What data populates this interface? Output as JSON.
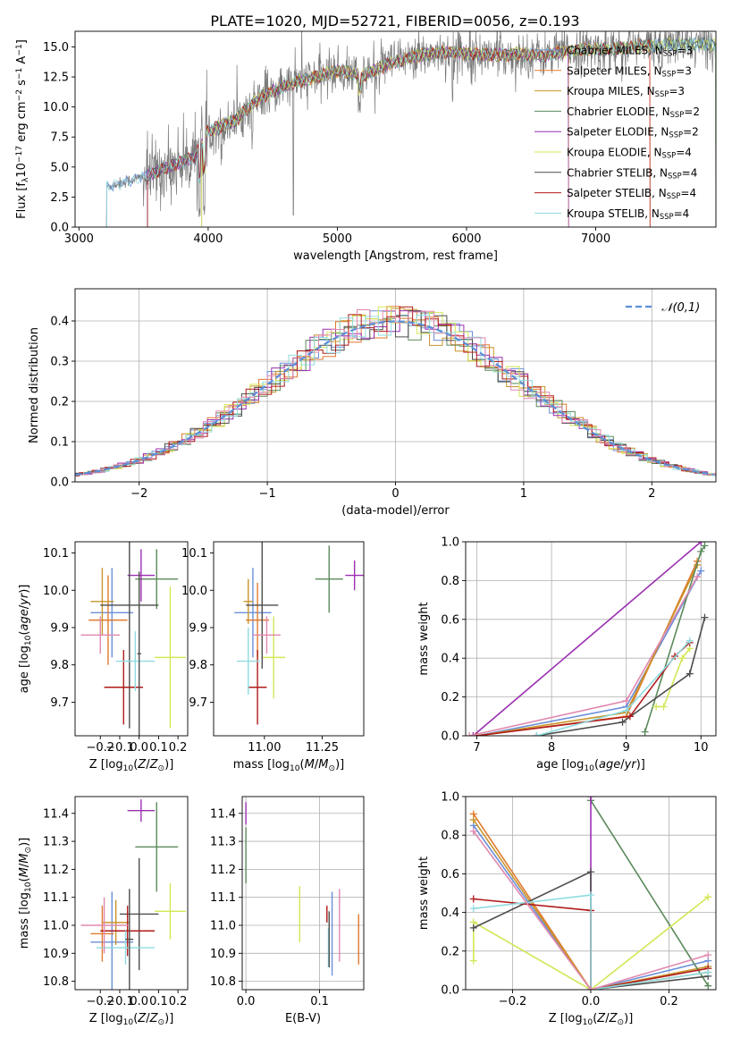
{
  "figure_title": "PLATE=1020, MJD=52721, FIBERID=0056, z=0.193",
  "colors": {
    "Chabrier MILES": "#6b8fd8",
    "Salpeter MILES": "#e07a2d",
    "Kroupa MILES": "#c8942a",
    "Chabrier ELODIE": "#5b8a5b",
    "Salpeter ELODIE": "#9a2fb0",
    "Kroupa ELODIE": "#d4e657",
    "Chabrier STELIB": "#4d4d4d",
    "Salpeter STELIB": "#b01a1a",
    "Kroupa STELIB": "#8fdce0",
    "pink": "#e088b0",
    "gauss": "#5b8fd8"
  },
  "chart_data": [
    {
      "id": "spectrum",
      "type": "line",
      "xlabel": "wavelength [Angstrom, rest frame]",
      "ylabel": "Flux [f_λ 10^-17 erg cm^-2 s^-1 A^-1]",
      "xlim": [
        2970,
        7930
      ],
      "ylim": [
        0,
        16.3
      ],
      "xticks": [
        3000,
        4000,
        5000,
        6000,
        7000
      ],
      "yticks": [
        0.0,
        2.5,
        5.0,
        7.5,
        10.0,
        12.5,
        15.0
      ],
      "legend_position": "right",
      "legend": [
        {
          "label": "Chabrier MILES, N_SSP=3",
          "color": "#6b8fd8"
        },
        {
          "label": "Salpeter MILES, N_SSP=3",
          "color": "#e07a2d"
        },
        {
          "label": "Kroupa MILES, N_SSP=3",
          "color": "#c8942a"
        },
        {
          "label": "Chabrier ELODIE, N_SSP=2",
          "color": "#5b8a5b"
        },
        {
          "label": "Salpeter ELODIE, N_SSP=2",
          "color": "#9a2fb0"
        },
        {
          "label": "Kroupa ELODIE, N_SSP=4",
          "color": "#d4e657"
        },
        {
          "label": "Chabrier STELIB, N_SSP=4",
          "color": "#4d4d4d"
        },
        {
          "label": "Salpeter STELIB, N_SSP=4",
          "color": "#b01a1a"
        },
        {
          "label": "Kroupa STELIB, N_SSP=4",
          "color": "#8fdce0"
        }
      ],
      "continuum": {
        "x": [
          3200,
          3300,
          3500,
          3700,
          3900,
          4000,
          4200,
          4400,
          4600,
          4800,
          5000,
          5200,
          5400,
          5600,
          5800,
          6000,
          6200,
          6400,
          6600,
          6800,
          7000,
          7200,
          7400,
          7600
        ],
        "y": [
          3.3,
          3.6,
          4.2,
          5.0,
          5.9,
          8.0,
          8.8,
          10.8,
          11.8,
          12.4,
          13.0,
          12.6,
          13.6,
          14.2,
          14.6,
          14.5,
          14.3,
          14.4,
          14.3,
          14.7,
          14.8,
          14.9,
          15.1,
          15.2
        ]
      }
    },
    {
      "id": "residuals",
      "type": "line",
      "xlabel": "(data-model)/error",
      "ylabel": "Normed distribution",
      "xlim": [
        -2.5,
        2.5
      ],
      "ylim": [
        0,
        0.48
      ],
      "xticks": [
        -2,
        -1,
        0,
        1,
        2
      ],
      "yticks": [
        0.0,
        0.1,
        0.2,
        0.3,
        0.4
      ],
      "legend": [
        {
          "label": "𝒩(0,1)",
          "color": "#5b8fd8"
        }
      ],
      "legend_position": "top-right",
      "grid": true
    },
    {
      "id": "age_vs_Z",
      "type": "scatter",
      "xlabel": "Z [log10(Z/Z⊙)]",
      "ylabel": "age [log10(age/yr)]",
      "xlim": [
        -0.33,
        0.25
      ],
      "ylim": [
        9.61,
        10.13
      ],
      "xticks": [
        -0.2,
        -0.1,
        0.0,
        0.1,
        0.2
      ],
      "yticks": [
        9.7,
        9.8,
        9.9,
        10.0,
        10.1
      ],
      "points": [
        {
          "series": "Chabrier MILES",
          "x": -0.14,
          "y": 9.94,
          "xerr": 0.11,
          "yerr": 0.12
        },
        {
          "series": "Salpeter MILES",
          "x": -0.16,
          "y": 9.92,
          "xerr": 0.1,
          "yerr": 0.12
        },
        {
          "series": "Kroupa MILES",
          "x": -0.19,
          "y": 9.97,
          "xerr": 0.06,
          "yerr": 0.09
        },
        {
          "series": "Chabrier ELODIE",
          "x": 0.09,
          "y": 10.03,
          "xerr": 0.11,
          "yerr": 0.08
        },
        {
          "series": "Salpeter ELODIE",
          "x": 0.01,
          "y": 10.04,
          "xerr": 0.07,
          "yerr": 0.07
        },
        {
          "series": "Kroupa ELODIE",
          "x": 0.16,
          "y": 9.82,
          "xerr": 0.08,
          "yerr": 0.19
        },
        {
          "series": "Chabrier STELIB",
          "x": -0.05,
          "y": 9.96,
          "xerr": 0.15,
          "yerr": 0.33
        },
        {
          "series": "Salpeter STELIB",
          "x": -0.08,
          "y": 9.74,
          "xerr": 0.1,
          "yerr": 0.1
        },
        {
          "series": "Kroupa STELIB",
          "x": -0.02,
          "y": 9.81,
          "xerr": 0.1,
          "yerr": 0.08
        },
        {
          "series": "pink",
          "x": -0.2,
          "y": 9.88,
          "xerr": 0.1,
          "yerr": 0.05
        },
        {
          "series": "Chabrier STELIB",
          "x": 0.0,
          "y": 9.83,
          "xerr": 0.01,
          "yerr": 0.22
        }
      ]
    },
    {
      "id": "age_vs_mass",
      "type": "scatter",
      "xlabel": "mass [log10(M/M⊙)]",
      "ylabel": "",
      "xlim": [
        10.78,
        11.43
      ],
      "ylim": [
        9.61,
        10.13
      ],
      "xticks": [
        11.0,
        11.25
      ],
      "xtick_labels": [
        "11.00",
        "11.25"
      ],
      "yticks": [
        9.7,
        9.8,
        9.9,
        10.0,
        10.1
      ],
      "points": [
        {
          "series": "Chabrier MILES",
          "x": 10.95,
          "y": 9.94,
          "xerr": 0.08,
          "yerr": 0.12
        },
        {
          "series": "Salpeter MILES",
          "x": 10.97,
          "y": 9.92,
          "xerr": 0.05,
          "yerr": 0.1
        },
        {
          "series": "Kroupa MILES",
          "x": 10.93,
          "y": 9.97,
          "xerr": 0.02,
          "yerr": 0.06
        },
        {
          "series": "Chabrier ELODIE",
          "x": 11.28,
          "y": 10.03,
          "xerr": 0.06,
          "yerr": 0.09
        },
        {
          "series": "Salpeter ELODIE",
          "x": 11.39,
          "y": 10.04,
          "xerr": 0.04,
          "yerr": 0.04
        },
        {
          "series": "Kroupa ELODIE",
          "x": 11.04,
          "y": 9.82,
          "xerr": 0.05,
          "yerr": 0.11
        },
        {
          "series": "Chabrier STELIB",
          "x": 10.99,
          "y": 9.96,
          "xerr": 0.07,
          "yerr": 0.17
        },
        {
          "series": "Salpeter STELIB",
          "x": 10.97,
          "y": 9.74,
          "xerr": 0.04,
          "yerr": 0.1
        },
        {
          "series": "Kroupa STELIB",
          "x": 10.93,
          "y": 9.81,
          "xerr": 0.05,
          "yerr": 0.09
        },
        {
          "series": "pink",
          "x": 11.01,
          "y": 9.88,
          "xerr": 0.06,
          "yerr": 0.05
        }
      ]
    },
    {
      "id": "massweight_vs_age",
      "type": "line",
      "xlabel": "age [log10(age/yr)]",
      "ylabel": "mass weight",
      "xlim": [
        6.85,
        10.2
      ],
      "ylim": [
        0,
        1.0
      ],
      "xticks": [
        7,
        8,
        9,
        10
      ],
      "yticks": [
        0.0,
        0.2,
        0.4,
        0.6,
        0.8,
        1.0
      ],
      "grid": true,
      "series": [
        {
          "name": "Chabrier MILES",
          "x": [
            7.0,
            9.0,
            10.0
          ],
          "y": [
            0.0,
            0.15,
            0.85
          ]
        },
        {
          "name": "Salpeter MILES",
          "x": [
            7.0,
            9.0,
            9.95
          ],
          "y": [
            0.0,
            0.1,
            0.9
          ]
        },
        {
          "name": "Kroupa MILES",
          "x": [
            7.0,
            9.0,
            9.95
          ],
          "y": [
            0.0,
            0.12,
            0.88
          ]
        },
        {
          "name": "Chabrier ELODIE",
          "x": [
            9.25,
            10.0,
            10.05
          ],
          "y": [
            0.02,
            0.95,
            0.98
          ]
        },
        {
          "name": "Salpeter ELODIE",
          "x": [
            6.95,
            10.0
          ],
          "y": [
            0.0,
            1.0
          ]
        },
        {
          "name": "Kroupa ELODIE",
          "x": [
            9.4,
            9.5,
            9.75,
            9.85
          ],
          "y": [
            0.15,
            0.15,
            0.4,
            0.45
          ]
        },
        {
          "name": "Chabrier STELIB",
          "x": [
            7.8,
            8.95,
            9.85,
            10.05
          ],
          "y": [
            0.0,
            0.07,
            0.32,
            0.61
          ]
        },
        {
          "name": "Salpeter STELIB",
          "x": [
            7.0,
            9.05,
            9.65,
            9.85
          ],
          "y": [
            0.0,
            0.1,
            0.41,
            0.48
          ]
        },
        {
          "name": "Kroupa STELIB",
          "x": [
            7.8,
            9.0,
            9.85
          ],
          "y": [
            0.0,
            0.13,
            0.49
          ]
        },
        {
          "name": "pink",
          "x": [
            6.9,
            9.0,
            9.95
          ],
          "y": [
            0.0,
            0.18,
            0.82
          ]
        }
      ]
    },
    {
      "id": "mass_vs_Z",
      "type": "scatter",
      "xlabel": "Z [log10(Z/Z⊙)]",
      "ylabel": "mass [log10(M/M⊙)]",
      "xlim": [
        -0.33,
        0.25
      ],
      "ylim": [
        10.77,
        11.46
      ],
      "xticks": [
        -0.2,
        -0.1,
        0.0,
        0.1,
        0.2
      ],
      "yticks": [
        10.8,
        10.9,
        11.0,
        11.1,
        11.2,
        11.3,
        11.4
      ],
      "points": [
        {
          "series": "Chabrier MILES",
          "x": -0.14,
          "y": 10.94,
          "xerr": 0.11,
          "yerr": 0.18
        },
        {
          "series": "Salpeter MILES",
          "x": -0.19,
          "y": 10.97,
          "xerr": 0.06,
          "yerr": 0.1
        },
        {
          "series": "Kroupa MILES",
          "x": -0.12,
          "y": 11.01,
          "xerr": 0.07,
          "yerr": 0.08
        },
        {
          "series": "Chabrier ELODIE",
          "x": 0.09,
          "y": 11.28,
          "xerr": 0.11,
          "yerr": 0.16
        },
        {
          "series": "Salpeter ELODIE",
          "x": 0.01,
          "y": 11.41,
          "xerr": 0.07,
          "yerr": 0.04
        },
        {
          "series": "Kroupa ELODIE",
          "x": 0.16,
          "y": 11.05,
          "xerr": 0.08,
          "yerr": 0.1
        },
        {
          "series": "Chabrier STELIB",
          "x": 0.0,
          "y": 11.04,
          "xerr": 0.1,
          "yerr": 0.2
        },
        {
          "series": "Salpeter STELIB",
          "x": -0.06,
          "y": 10.98,
          "xerr": 0.14,
          "yerr": 0.09
        },
        {
          "series": "Kroupa STELIB",
          "x": -0.07,
          "y": 10.92,
          "xerr": 0.15,
          "yerr": 0.06
        },
        {
          "series": "pink",
          "x": -0.18,
          "y": 11.0,
          "xerr": 0.12,
          "yerr": 0.1
        },
        {
          "series": "Chabrier STELIB",
          "x": -0.05,
          "y": 10.95,
          "xerr": 0.02,
          "yerr": 0.18
        }
      ]
    },
    {
      "id": "mass_vs_ebv",
      "type": "scatter",
      "xlabel": "E(B-V)",
      "ylabel": "",
      "xlim": [
        -0.005,
        0.16
      ],
      "ylim": [
        10.77,
        11.46
      ],
      "xticks": [
        0.0,
        0.1
      ],
      "yticks": [
        10.8,
        10.9,
        11.0,
        11.1,
        11.2,
        11.3,
        11.4
      ],
      "grid": true,
      "points": [
        {
          "series": "Salpeter ELODIE",
          "x": 0.0,
          "y": 11.4,
          "yerr": 0.04
        },
        {
          "series": "Chabrier ELODIE",
          "x": 0.0,
          "y": 11.25,
          "yerr": 0.1
        },
        {
          "series": "Kroupa ELODIE",
          "x": 0.073,
          "y": 11.04,
          "yerr": 0.1
        },
        {
          "series": "Salpeter STELIB",
          "x": 0.11,
          "y": 11.04,
          "yerr": 0.03
        },
        {
          "series": "Kroupa STELIB",
          "x": 0.112,
          "y": 10.92,
          "yerr": 0.07
        },
        {
          "series": "Chabrier STELIB",
          "x": 0.113,
          "y": 10.95,
          "yerr": 0.1
        },
        {
          "series": "Chabrier MILES",
          "x": 0.117,
          "y": 10.97,
          "yerr": 0.15
        },
        {
          "series": "pink",
          "x": 0.127,
          "y": 11.0,
          "yerr": 0.13
        },
        {
          "series": "Salpeter MILES",
          "x": 0.153,
          "y": 10.95,
          "yerr": 0.09
        }
      ]
    },
    {
      "id": "massweight_vs_Z",
      "type": "line",
      "xlabel": "Z [log10(Z/Z⊙)]",
      "ylabel": "mass weight",
      "xlim": [
        -0.32,
        0.32
      ],
      "ylim": [
        0,
        1.0
      ],
      "xticks": [
        -0.2,
        0.0,
        0.2
      ],
      "yticks": [
        0.0,
        0.2,
        0.4,
        0.6,
        0.8,
        1.0
      ],
      "grid": true,
      "series": [
        {
          "name": "Chabrier MILES",
          "x": [
            -0.3,
            0.0,
            0.3
          ],
          "y": [
            0.85,
            0.0,
            0.15
          ]
        },
        {
          "name": "Salpeter MILES",
          "x": [
            -0.3,
            0.0,
            0.3
          ],
          "y": [
            0.91,
            0.0,
            0.09
          ]
        },
        {
          "name": "Kroupa MILES",
          "x": [
            -0.3,
            0.0,
            0.3
          ],
          "y": [
            0.88,
            0.0,
            0.12
          ]
        },
        {
          "name": "Chabrier ELODIE",
          "x": [
            0.0,
            0.3
          ],
          "y": [
            0.98,
            0.02
          ]
        },
        {
          "name": "Salpeter ELODIE",
          "x": [
            0.0,
            0.0
          ],
          "y": [
            1.0,
            0.0
          ]
        },
        {
          "name": "Kroupa ELODIE",
          "x": [
            -0.3,
            -0.3,
            0.0,
            0.3
          ],
          "y": [
            0.15,
            0.35,
            0.0,
            0.48
          ]
        },
        {
          "name": "Chabrier STELIB",
          "x": [
            -0.3,
            0.0,
            0.0,
            0.3
          ],
          "y": [
            0.32,
            0.61,
            0.0,
            0.07
          ]
        },
        {
          "name": "Salpeter STELIB",
          "x": [
            -0.3,
            0.0,
            0.0,
            0.3
          ],
          "y": [
            0.47,
            0.41,
            0.0,
            0.11
          ]
        },
        {
          "name": "Kroupa STELIB",
          "x": [
            -0.3,
            0.0,
            0.0,
            0.3
          ],
          "y": [
            0.42,
            0.49,
            0.0,
            0.09
          ]
        },
        {
          "name": "pink",
          "x": [
            -0.3,
            0.0,
            0.3
          ],
          "y": [
            0.82,
            0.0,
            0.18
          ]
        }
      ]
    }
  ]
}
